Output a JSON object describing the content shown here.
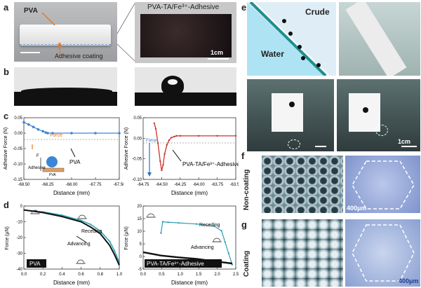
{
  "panels": {
    "a": {
      "label": "a",
      "left": {
        "pva": "PVA",
        "coating": "Adhesive coating"
      },
      "right": {
        "title": "PVA-TA/Fe³⁺-Adhesive",
        "scale": "1cm"
      }
    },
    "b": {
      "label": "b"
    },
    "c": {
      "label": "c",
      "left": {
        "ylabel": "Adhesive Force (N)",
        "xlabel": "Distance (mm)",
        "yticks": [
          "0.05",
          "0.00",
          "-0.05",
          "-0.10",
          "-0.15"
        ],
        "xticks": [
          "-68.50",
          "-68.25",
          "-68.00",
          "-67.75",
          "-67.50"
        ],
        "force": "Force",
        "pva": "PVA",
        "f": "F",
        "adhesive": "Adhesive",
        "pva_block": "PVA"
      },
      "right": {
        "ylabel": "Adhesive Force (N)",
        "xlabel": "Distance (mm)",
        "yticks": [
          "0.05",
          "0.00",
          "-0.05",
          "-0.10"
        ],
        "xticks": [
          "-64.75",
          "-64.50",
          "-64.25",
          "-64.00",
          "-63.75",
          "-63.50"
        ],
        "force": "Force",
        "name": "PVA-TA/Fe³⁺-Adhesive"
      }
    },
    "d": {
      "label": "d",
      "left": {
        "ylabel": "Force (μN)",
        "xlabel": "Distance (mm)",
        "yticks": [
          "0",
          "-10",
          "-20",
          "-30",
          "-40"
        ],
        "xticks": [
          "0.0",
          "0.2",
          "0.4",
          "0.6",
          "0.8",
          "1.0"
        ],
        "receding": "Receding",
        "advancing": "Advancing",
        "tag": "PVA"
      },
      "right": {
        "ylabel": "Force (μN)",
        "xlabel": "Distance (mm)",
        "yticks": [
          "20",
          "15",
          "10",
          "5",
          "0",
          "-5"
        ],
        "xticks": [
          "0.0",
          "0.5",
          "1.0",
          "1.5",
          "2.0",
          "2.5"
        ],
        "receding": "Receding",
        "advancing": "Advancing",
        "tag": "PVA-TA/Fe³⁺-Adhesive"
      }
    },
    "e": {
      "label": "e",
      "crude": "Crude",
      "water": "Water",
      "scale": "1cm"
    },
    "f": {
      "label": "f",
      "side": "Non-coating",
      "scale": "400μm"
    },
    "g": {
      "label": "g",
      "side": "Coating",
      "scale": "400μm"
    }
  },
  "chart_data": [
    {
      "type": "line",
      "panel": "c-left",
      "xlabel": "Distance (mm)",
      "ylabel": "Adhesive Force (N)",
      "xlim": [
        -68.5,
        -67.5
      ],
      "ylim": [
        -0.15,
        0.05
      ],
      "series": [
        {
          "x": [
            -68.5,
            -68.45,
            -68.4,
            -68.35,
            -68.3,
            -68.27,
            -68.25,
            -68.2,
            -68.0,
            -67.75,
            -67.5
          ],
          "y": [
            0.035,
            0.028,
            0.02,
            0.012,
            0.006,
            0.002,
            0.0,
            0.0,
            0.0,
            0.0,
            0.0
          ]
        }
      ]
    },
    {
      "type": "line",
      "panel": "c-right",
      "xlabel": "Distance (mm)",
      "ylabel": "Adhesive Force (N)",
      "xlim": [
        -64.75,
        -63.5
      ],
      "ylim": [
        -0.12,
        0.05
      ],
      "series": [
        {
          "x": [
            -64.6,
            -64.58,
            -64.55,
            -64.52,
            -64.5,
            -64.48,
            -64.46,
            -64.43,
            -64.4,
            -64.37,
            -64.33,
            -64.3,
            -64.25,
            -64.0,
            -63.75,
            -63.5
          ],
          "y": [
            0.035,
            0.02,
            -0.02,
            -0.07,
            -0.095,
            -0.08,
            -0.05,
            -0.025,
            -0.012,
            -0.005,
            -0.002,
            0.0,
            0.0,
            0.0,
            0.0,
            0.0
          ]
        }
      ]
    },
    {
      "type": "line",
      "panel": "d-left",
      "xlabel": "Distance (mm)",
      "ylabel": "Force (μN)",
      "xlim": [
        0,
        1.0
      ],
      "ylim": [
        -45,
        3
      ],
      "series": [
        {
          "name": "Receding",
          "x": [
            0.0,
            0.2,
            0.4,
            0.6,
            0.7,
            0.8,
            0.9,
            0.95,
            1.0
          ],
          "y": [
            0,
            -1.5,
            -4,
            -8,
            -11,
            -16,
            -24,
            -31,
            -40
          ]
        },
        {
          "name": "Advancing",
          "x": [
            0.0,
            0.2,
            0.4,
            0.6,
            0.7,
            0.8,
            0.9,
            0.95,
            1.0
          ],
          "y": [
            0,
            -2,
            -5,
            -9,
            -13,
            -18,
            -27,
            -34,
            -42
          ]
        }
      ]
    },
    {
      "type": "line",
      "panel": "d-right",
      "xlabel": "Distance (mm)",
      "ylabel": "Force (μN)",
      "xlim": [
        0,
        2.6
      ],
      "ylim": [
        -7,
        21
      ],
      "series": [
        {
          "name": "Receding",
          "x": [
            0.5,
            0.55,
            0.7,
            1.0,
            1.5,
            2.0,
            2.2,
            2.3,
            2.4,
            2.5
          ],
          "y": [
            9,
            14,
            13.8,
            13.5,
            13,
            12,
            10,
            5,
            0,
            -5
          ]
        },
        {
          "name": "Advancing",
          "x": [
            0.0,
            0.5,
            1.0,
            1.5,
            2.0,
            2.5
          ],
          "y": [
            0.5,
            -1,
            -1.8,
            -2.5,
            -3.5,
            -4.5
          ]
        }
      ]
    }
  ]
}
